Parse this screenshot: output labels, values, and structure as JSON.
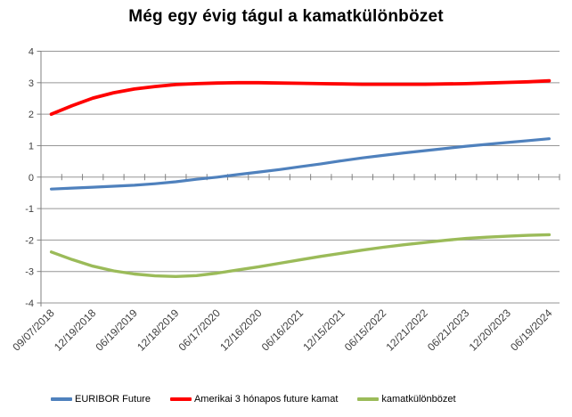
{
  "title": "Még egy évig tágul a kamatkülönbözet",
  "chart_data": {
    "type": "line",
    "title": "Még egy évig tágul a kamatkülönbözet",
    "x_labels": [
      "09/07/2018",
      "12/19/2018",
      "06/19/2019",
      "12/18/2019",
      "06/17/2020",
      "12/16/2020",
      "06/16/2021",
      "12/15/2021",
      "06/15/2022",
      "12/21/2022",
      "06/21/2023",
      "12/20/2023",
      "06/19/2024"
    ],
    "label_every": 2,
    "y_ticks": [
      4,
      3,
      2,
      1,
      0,
      -1,
      -2,
      -3,
      -4
    ],
    "ylim": [
      -4,
      4
    ],
    "grid": "horizontal",
    "legend_position": "bottom",
    "series": [
      {
        "name": "EURIBOR Future",
        "color": "#4F81BD",
        "values": [
          -0.38,
          -0.35,
          -0.32,
          -0.29,
          -0.26,
          -0.21,
          -0.15,
          -0.07,
          0.0,
          0.08,
          0.16,
          0.24,
          0.33,
          0.42,
          0.52,
          0.61,
          0.69,
          0.77,
          0.84,
          0.91,
          0.98,
          1.04,
          1.1,
          1.16,
          1.22
        ]
      },
      {
        "name": "Amerikai 3 hónapos future kamat",
        "color": "#FF0000",
        "values": [
          2.0,
          2.27,
          2.51,
          2.68,
          2.8,
          2.88,
          2.94,
          2.97,
          2.99,
          3.0,
          3.0,
          2.99,
          2.98,
          2.97,
          2.96,
          2.95,
          2.95,
          2.95,
          2.95,
          2.96,
          2.97,
          2.99,
          3.01,
          3.03,
          3.06
        ]
      },
      {
        "name": "kamatkülönbözet",
        "color": "#9BBB59",
        "values": [
          -2.38,
          -2.62,
          -2.83,
          -2.98,
          -3.08,
          -3.14,
          -3.16,
          -3.13,
          -3.05,
          -2.95,
          -2.85,
          -2.74,
          -2.63,
          -2.52,
          -2.42,
          -2.32,
          -2.23,
          -2.15,
          -2.08,
          -2.01,
          -1.95,
          -1.91,
          -1.88,
          -1.85,
          -1.83
        ]
      }
    ],
    "colors": {
      "gridline": "#969696",
      "axis_line": "#808080",
      "tick_label": "#404040"
    }
  }
}
